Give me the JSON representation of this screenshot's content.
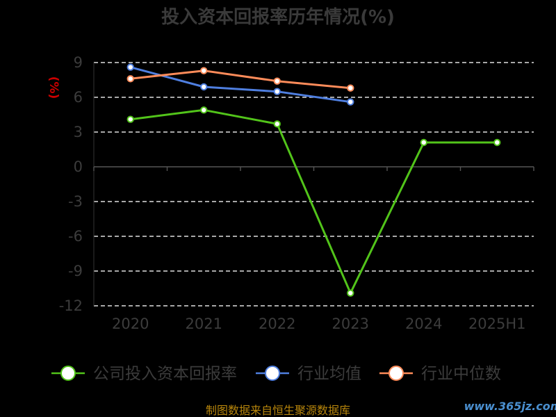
{
  "chart_data": {
    "type": "line",
    "title": "投入资本回报率历年情况(%)",
    "ylabel": "(%)",
    "categories": [
      "2020",
      "2021",
      "2022",
      "2023",
      "2024",
      "2025H1"
    ],
    "yticks": [
      "9",
      "6",
      "3",
      "0",
      "-3",
      "-6",
      "-9",
      "-12"
    ],
    "ylim": [
      -12,
      9
    ],
    "grid": true,
    "legend_position": "bottom",
    "series": [
      {
        "name": "公司投入资本回报率",
        "color": "#52c41a",
        "values": [
          4.1,
          4.9,
          3.7,
          -10.9,
          2.1,
          2.1
        ]
      },
      {
        "name": "行业均值",
        "color": "#4f7fe0",
        "values": [
          8.6,
          6.9,
          6.5,
          5.6,
          null,
          null
        ]
      },
      {
        "name": "行业中位数",
        "color": "#ff8c5a",
        "values": [
          7.6,
          8.3,
          7.4,
          6.8,
          null,
          null
        ]
      }
    ]
  },
  "footer": "制图数据来自恒生聚源数据库",
  "watermark": "www.365jz.com"
}
